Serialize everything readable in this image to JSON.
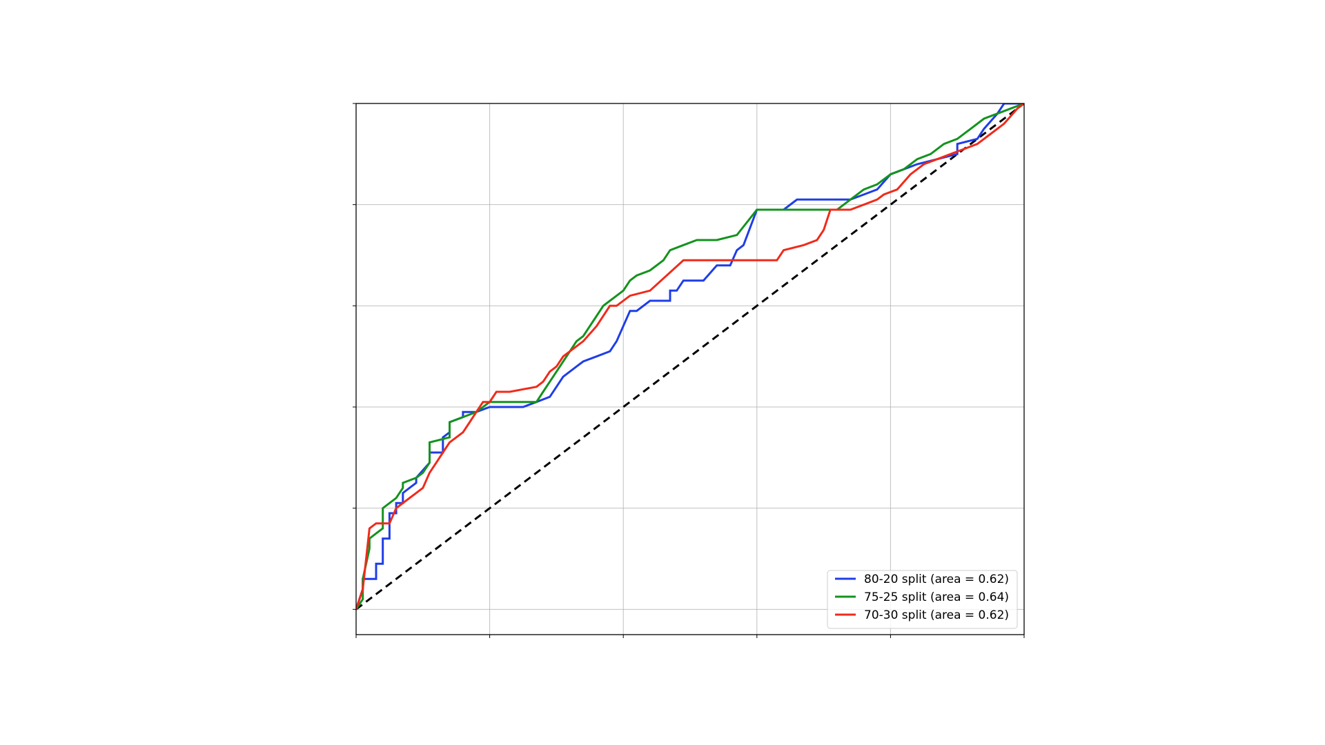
{
  "chart_data": {
    "type": "line",
    "title": "",
    "xlabel": "",
    "ylabel": "",
    "xlim": [
      0,
      1
    ],
    "ylim": [
      -0.05,
      1.0
    ],
    "xticks": [
      0,
      0.2,
      0.4,
      0.6,
      0.8,
      1.0
    ],
    "yticks": [
      0,
      0.2,
      0.4,
      0.6,
      0.8,
      1.0
    ],
    "grid": true,
    "legend_position": "lower-right",
    "reference_line": {
      "x": [
        0,
        1
      ],
      "y": [
        0,
        1
      ],
      "style": "dashed",
      "color": "#000000"
    },
    "series": [
      {
        "name": "80-20 split (area = 0.62)",
        "color": "#1f3de8",
        "x": [
          0,
          0.01,
          0.01,
          0.03,
          0.03,
          0.04,
          0.04,
          0.05,
          0.05,
          0.06,
          0.06,
          0.07,
          0.07,
          0.08,
          0.09,
          0.09,
          0.11,
          0.11,
          0.13,
          0.13,
          0.14,
          0.14,
          0.16,
          0.16,
          0.18,
          0.2,
          0.22,
          0.25,
          0.27,
          0.29,
          0.3,
          0.31,
          0.33,
          0.34,
          0.36,
          0.38,
          0.39,
          0.4,
          0.41,
          0.42,
          0.44,
          0.47,
          0.47,
          0.48,
          0.49,
          0.52,
          0.54,
          0.56,
          0.57,
          0.58,
          0.6,
          0.64,
          0.66,
          0.74,
          0.76,
          0.78,
          0.8,
          0.82,
          0.84,
          0.87,
          0.9,
          0.9,
          0.93,
          0.94,
          0.96,
          0.97,
          1.0
        ],
        "y": [
          0,
          0.04,
          0.06,
          0.06,
          0.09,
          0.09,
          0.14,
          0.14,
          0.19,
          0.19,
          0.21,
          0.21,
          0.23,
          0.24,
          0.25,
          0.26,
          0.29,
          0.31,
          0.31,
          0.34,
          0.35,
          0.37,
          0.38,
          0.39,
          0.39,
          0.4,
          0.4,
          0.4,
          0.41,
          0.42,
          0.44,
          0.46,
          0.48,
          0.49,
          0.5,
          0.51,
          0.53,
          0.56,
          0.59,
          0.59,
          0.61,
          0.61,
          0.63,
          0.63,
          0.65,
          0.65,
          0.68,
          0.68,
          0.71,
          0.72,
          0.79,
          0.79,
          0.81,
          0.81,
          0.82,
          0.83,
          0.86,
          0.87,
          0.88,
          0.89,
          0.9,
          0.92,
          0.93,
          0.95,
          0.98,
          1.0,
          1.0
        ]
      },
      {
        "name": "75-25 split (area = 0.64)",
        "color": "#13931d",
        "x": [
          0,
          0.01,
          0.01,
          0.02,
          0.02,
          0.03,
          0.04,
          0.04,
          0.06,
          0.07,
          0.07,
          0.09,
          0.1,
          0.11,
          0.11,
          0.14,
          0.14,
          0.18,
          0.2,
          0.27,
          0.28,
          0.29,
          0.3,
          0.31,
          0.32,
          0.33,
          0.34,
          0.36,
          0.37,
          0.38,
          0.39,
          0.4,
          0.41,
          0.42,
          0.44,
          0.46,
          0.47,
          0.49,
          0.51,
          0.54,
          0.57,
          0.6,
          0.6,
          0.66,
          0.72,
          0.74,
          0.76,
          0.78,
          0.8,
          0.82,
          0.84,
          0.86,
          0.88,
          0.9,
          0.92,
          0.94,
          0.96,
          0.98,
          1.0
        ],
        "y": [
          0,
          0.02,
          0.06,
          0.12,
          0.14,
          0.15,
          0.16,
          0.2,
          0.22,
          0.24,
          0.25,
          0.26,
          0.27,
          0.29,
          0.33,
          0.34,
          0.37,
          0.39,
          0.41,
          0.41,
          0.43,
          0.45,
          0.47,
          0.49,
          0.51,
          0.53,
          0.54,
          0.58,
          0.6,
          0.61,
          0.62,
          0.63,
          0.65,
          0.66,
          0.67,
          0.69,
          0.71,
          0.72,
          0.73,
          0.73,
          0.74,
          0.79,
          0.79,
          0.79,
          0.79,
          0.81,
          0.83,
          0.84,
          0.86,
          0.87,
          0.89,
          0.9,
          0.92,
          0.93,
          0.95,
          0.97,
          0.98,
          0.99,
          1.0
        ]
      },
      {
        "name": "70-30 split (area = 0.62)",
        "color": "#f02a1a",
        "x": [
          0,
          0.01,
          0.02,
          0.03,
          0.04,
          0.05,
          0.06,
          0.07,
          0.08,
          0.09,
          0.1,
          0.11,
          0.12,
          0.13,
          0.14,
          0.16,
          0.17,
          0.18,
          0.19,
          0.2,
          0.21,
          0.23,
          0.27,
          0.28,
          0.29,
          0.3,
          0.31,
          0.32,
          0.34,
          0.36,
          0.38,
          0.39,
          0.41,
          0.44,
          0.49,
          0.54,
          0.6,
          0.63,
          0.64,
          0.67,
          0.69,
          0.7,
          0.71,
          0.74,
          0.76,
          0.78,
          0.79,
          0.81,
          0.83,
          0.85,
          0.87,
          0.89,
          0.91,
          0.93,
          0.95,
          0.97,
          0.99,
          1.0
        ],
        "y": [
          0,
          0.04,
          0.16,
          0.17,
          0.17,
          0.17,
          0.2,
          0.21,
          0.22,
          0.23,
          0.24,
          0.27,
          0.29,
          0.31,
          0.33,
          0.35,
          0.37,
          0.39,
          0.41,
          0.41,
          0.43,
          0.43,
          0.44,
          0.45,
          0.47,
          0.48,
          0.5,
          0.51,
          0.53,
          0.56,
          0.6,
          0.6,
          0.62,
          0.63,
          0.69,
          0.69,
          0.69,
          0.69,
          0.71,
          0.72,
          0.73,
          0.75,
          0.79,
          0.79,
          0.8,
          0.81,
          0.82,
          0.83,
          0.86,
          0.88,
          0.89,
          0.9,
          0.91,
          0.92,
          0.94,
          0.96,
          0.99,
          1.0
        ]
      }
    ]
  }
}
